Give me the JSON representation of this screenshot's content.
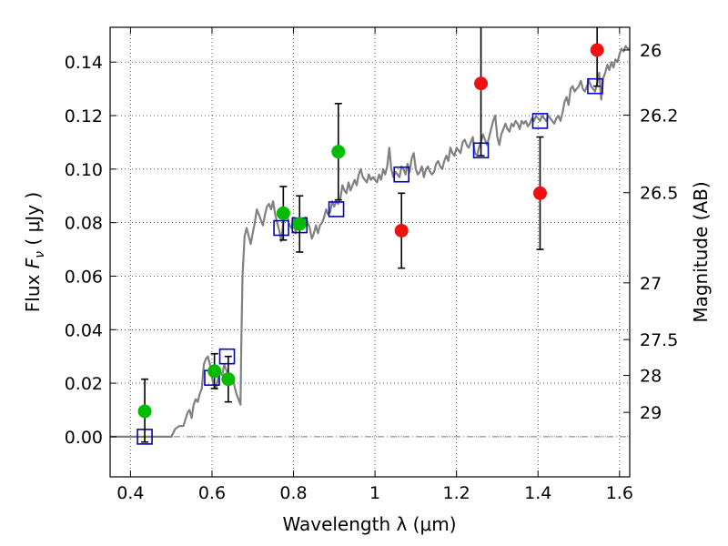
{
  "chart_data": {
    "type": "scatter",
    "title": "",
    "xlabel": "Wavelength  λ (μm)",
    "ylabel": "Flux  F_ν  ( μJy )",
    "ylabel_parts": {
      "prefix": "Flux  ",
      "symbol": "F",
      "subscript": "ν",
      "suffix": "  ( μJy )"
    },
    "y2label": "Magnitude (AB)",
    "xlim": [
      0.35,
      1.625
    ],
    "ylim": [
      -0.015,
      0.153
    ],
    "grid": true,
    "x_ticks": [
      {
        "value": 0.4,
        "label": "0.4"
      },
      {
        "value": 0.6,
        "label": "0.6"
      },
      {
        "value": 0.8,
        "label": "0.8"
      },
      {
        "value": 1.0,
        "label": "1"
      },
      {
        "value": 1.2,
        "label": "1.2"
      },
      {
        "value": 1.4,
        "label": "1.4"
      },
      {
        "value": 1.6,
        "label": "1.6"
      }
    ],
    "y_ticks": [
      {
        "value": 0.0,
        "label": "0.00"
      },
      {
        "value": 0.02,
        "label": "0.02"
      },
      {
        "value": 0.04,
        "label": "0.04"
      },
      {
        "value": 0.06,
        "label": "0.06"
      },
      {
        "value": 0.08,
        "label": "0.08"
      },
      {
        "value": 0.1,
        "label": "0.10"
      },
      {
        "value": 0.12,
        "label": "0.12"
      },
      {
        "value": 0.14,
        "label": "0.14"
      }
    ],
    "y2_ticks": [
      {
        "label": "26",
        "flux": 0.1445
      },
      {
        "label": "26.2",
        "flux": 0.1202
      },
      {
        "label": "26.5",
        "flux": 0.0912
      },
      {
        "label": "27",
        "flux": 0.0575
      },
      {
        "label": "27.5",
        "flux": 0.0363
      },
      {
        "label": "28",
        "flux": 0.0229
      },
      {
        "label": "29",
        "flux": 0.0091
      }
    ],
    "zero_line": 0.0,
    "colors": {
      "spectrum": "#808080",
      "green": "#00bb00",
      "red": "#ee1111",
      "model_box": "#0000cc",
      "errorbar": "#000000"
    },
    "series": [
      {
        "kind": "line",
        "points": [
          [
            0.35,
            0.0
          ],
          [
            0.5,
            0.0
          ],
          [
            0.51,
            0.003
          ],
          [
            0.52,
            0.004
          ],
          [
            0.53,
            0.004
          ],
          [
            0.54,
            0.009
          ],
          [
            0.545,
            0.01
          ],
          [
            0.55,
            0.007
          ],
          [
            0.555,
            0.012
          ],
          [
            0.56,
            0.014
          ],
          [
            0.565,
            0.013
          ],
          [
            0.57,
            0.016
          ],
          [
            0.575,
            0.018
          ],
          [
            0.58,
            0.027
          ],
          [
            0.585,
            0.029
          ],
          [
            0.59,
            0.03
          ],
          [
            0.595,
            0.027
          ],
          [
            0.6,
            0.022
          ],
          [
            0.605,
            0.019
          ],
          [
            0.61,
            0.018
          ],
          [
            0.615,
            0.022
          ],
          [
            0.62,
            0.024
          ],
          [
            0.625,
            0.023
          ],
          [
            0.63,
            0.027
          ],
          [
            0.635,
            0.025
          ],
          [
            0.64,
            0.023
          ],
          [
            0.645,
            0.021
          ],
          [
            0.65,
            0.023
          ],
          [
            0.655,
            0.019
          ],
          [
            0.66,
            0.016
          ],
          [
            0.665,
            0.014
          ],
          [
            0.67,
            0.012
          ],
          [
            0.672,
            0.035
          ],
          [
            0.675,
            0.06
          ],
          [
            0.68,
            0.075
          ],
          [
            0.685,
            0.078
          ],
          [
            0.69,
            0.075
          ],
          [
            0.695,
            0.072
          ],
          [
            0.7,
            0.076
          ],
          [
            0.705,
            0.08
          ],
          [
            0.71,
            0.085
          ],
          [
            0.715,
            0.083
          ],
          [
            0.72,
            0.081
          ],
          [
            0.725,
            0.079
          ],
          [
            0.73,
            0.083
          ],
          [
            0.735,
            0.086
          ],
          [
            0.74,
            0.087
          ],
          [
            0.745,
            0.085
          ],
          [
            0.75,
            0.088
          ],
          [
            0.755,
            0.083
          ],
          [
            0.76,
            0.08
          ],
          [
            0.765,
            0.077
          ],
          [
            0.77,
            0.073
          ],
          [
            0.775,
            0.08
          ],
          [
            0.78,
            0.084
          ],
          [
            0.785,
            0.082
          ],
          [
            0.79,
            0.079
          ],
          [
            0.795,
            0.078
          ],
          [
            0.8,
            0.082
          ],
          [
            0.805,
            0.076
          ],
          [
            0.81,
            0.079
          ],
          [
            0.815,
            0.081
          ],
          [
            0.82,
            0.08
          ],
          [
            0.825,
            0.078
          ],
          [
            0.83,
            0.082
          ],
          [
            0.835,
            0.08
          ],
          [
            0.84,
            0.078
          ],
          [
            0.845,
            0.074
          ],
          [
            0.85,
            0.076
          ],
          [
            0.855,
            0.079
          ],
          [
            0.86,
            0.076
          ],
          [
            0.865,
            0.079
          ],
          [
            0.87,
            0.08
          ],
          [
            0.875,
            0.082
          ],
          [
            0.88,
            0.085
          ],
          [
            0.885,
            0.083
          ],
          [
            0.89,
            0.084
          ],
          [
            0.895,
            0.088
          ],
          [
            0.9,
            0.086
          ],
          [
            0.905,
            0.088
          ],
          [
            0.91,
            0.087
          ],
          [
            0.915,
            0.089
          ],
          [
            0.92,
            0.094
          ],
          [
            0.925,
            0.092
          ],
          [
            0.93,
            0.091
          ],
          [
            0.935,
            0.095
          ],
          [
            0.94,
            0.092
          ],
          [
            0.945,
            0.094
          ],
          [
            0.95,
            0.096
          ],
          [
            0.955,
            0.094
          ],
          [
            0.96,
            0.098
          ],
          [
            0.965,
            0.1
          ],
          [
            0.97,
            0.097
          ],
          [
            0.975,
            0.096
          ],
          [
            0.98,
            0.095
          ],
          [
            0.985,
            0.098
          ],
          [
            0.99,
            0.096
          ],
          [
            0.995,
            0.097
          ],
          [
            1.0,
            0.096
          ],
          [
            1.005,
            0.095
          ],
          [
            1.01,
            0.098
          ],
          [
            1.015,
            0.096
          ],
          [
            1.02,
            0.1
          ],
          [
            1.025,
            0.098
          ],
          [
            1.03,
            0.101
          ],
          [
            1.035,
            0.108
          ],
          [
            1.04,
            0.1
          ],
          [
            1.045,
            0.097
          ],
          [
            1.05,
            0.099
          ],
          [
            1.055,
            0.098
          ],
          [
            1.06,
            0.097
          ],
          [
            1.065,
            0.101
          ],
          [
            1.07,
            0.1
          ],
          [
            1.075,
            0.098
          ],
          [
            1.08,
            0.102
          ],
          [
            1.085,
            0.099
          ],
          [
            1.09,
            0.104
          ],
          [
            1.095,
            0.106
          ],
          [
            1.1,
            0.1
          ],
          [
            1.105,
            0.098
          ],
          [
            1.11,
            0.099
          ],
          [
            1.115,
            0.101
          ],
          [
            1.12,
            0.097
          ],
          [
            1.125,
            0.1
          ],
          [
            1.13,
            0.101
          ],
          [
            1.135,
            0.099
          ],
          [
            1.14,
            0.098
          ],
          [
            1.145,
            0.099
          ],
          [
            1.15,
            0.102
          ],
          [
            1.155,
            0.103
          ],
          [
            1.16,
            0.101
          ],
          [
            1.165,
            0.1
          ],
          [
            1.17,
            0.103
          ],
          [
            1.175,
            0.105
          ],
          [
            1.18,
            0.103
          ],
          [
            1.185,
            0.108
          ],
          [
            1.19,
            0.106
          ],
          [
            1.195,
            0.105
          ],
          [
            1.2,
            0.108
          ],
          [
            1.205,
            0.107
          ],
          [
            1.21,
            0.106
          ],
          [
            1.215,
            0.11
          ],
          [
            1.22,
            0.111
          ],
          [
            1.225,
            0.109
          ],
          [
            1.23,
            0.108
          ],
          [
            1.235,
            0.11
          ],
          [
            1.24,
            0.112
          ],
          [
            1.245,
            0.106
          ],
          [
            1.25,
            0.105
          ],
          [
            1.255,
            0.108
          ],
          [
            1.26,
            0.11
          ],
          [
            1.265,
            0.113
          ],
          [
            1.27,
            0.111
          ],
          [
            1.275,
            0.109
          ],
          [
            1.28,
            0.112
          ],
          [
            1.285,
            0.115
          ],
          [
            1.29,
            0.118
          ],
          [
            1.295,
            0.12
          ],
          [
            1.3,
            0.112
          ],
          [
            1.305,
            0.109
          ],
          [
            1.31,
            0.113
          ],
          [
            1.315,
            0.115
          ],
          [
            1.32,
            0.117
          ],
          [
            1.325,
            0.115
          ],
          [
            1.33,
            0.114
          ],
          [
            1.335,
            0.117
          ],
          [
            1.34,
            0.116
          ],
          [
            1.345,
            0.118
          ],
          [
            1.35,
            0.117
          ],
          [
            1.355,
            0.115
          ],
          [
            1.36,
            0.118
          ],
          [
            1.365,
            0.117
          ],
          [
            1.37,
            0.118
          ],
          [
            1.375,
            0.116
          ],
          [
            1.38,
            0.117
          ],
          [
            1.385,
            0.119
          ],
          [
            1.39,
            0.118
          ],
          [
            1.395,
            0.12
          ],
          [
            1.4,
            0.119
          ],
          [
            1.405,
            0.118
          ],
          [
            1.41,
            0.12
          ],
          [
            1.415,
            0.119
          ],
          [
            1.42,
            0.118
          ],
          [
            1.425,
            0.12
          ],
          [
            1.43,
            0.119
          ],
          [
            1.435,
            0.118
          ],
          [
            1.44,
            0.117
          ],
          [
            1.445,
            0.119
          ],
          [
            1.45,
            0.12
          ],
          [
            1.455,
            0.118
          ],
          [
            1.46,
            0.121
          ],
          [
            1.465,
            0.125
          ],
          [
            1.47,
            0.127
          ],
          [
            1.475,
            0.124
          ],
          [
            1.48,
            0.13
          ],
          [
            1.485,
            0.131
          ],
          [
            1.49,
            0.129
          ],
          [
            1.495,
            0.13
          ],
          [
            1.5,
            0.131
          ],
          [
            1.505,
            0.133
          ],
          [
            1.51,
            0.13
          ],
          [
            1.515,
            0.129
          ],
          [
            1.52,
            0.131
          ],
          [
            1.525,
            0.133
          ],
          [
            1.53,
            0.131
          ],
          [
            1.535,
            0.13
          ],
          [
            1.54,
            0.129
          ],
          [
            1.545,
            0.132
          ],
          [
            1.55,
            0.136
          ],
          [
            1.555,
            0.126
          ],
          [
            1.56,
            0.134
          ],
          [
            1.565,
            0.136
          ],
          [
            1.57,
            0.139
          ],
          [
            1.575,
            0.137
          ],
          [
            1.58,
            0.14
          ],
          [
            1.585,
            0.138
          ],
          [
            1.59,
            0.141
          ],
          [
            1.595,
            0.14
          ],
          [
            1.6,
            0.143
          ],
          [
            1.605,
            0.145
          ],
          [
            1.61,
            0.144
          ],
          [
            1.615,
            0.146
          ],
          [
            1.62,
            0.145
          ],
          [
            1.625,
            0.145
          ]
        ]
      },
      {
        "kind": "model_boxes",
        "points": [
          {
            "x": 0.435,
            "y": 0.0
          },
          {
            "x": 0.6,
            "y": 0.022
          },
          {
            "x": 0.637,
            "y": 0.03
          },
          {
            "x": 0.77,
            "y": 0.078
          },
          {
            "x": 0.815,
            "y": 0.079
          },
          {
            "x": 0.905,
            "y": 0.085
          },
          {
            "x": 1.065,
            "y": 0.098
          },
          {
            "x": 1.26,
            "y": 0.107
          },
          {
            "x": 1.405,
            "y": 0.118
          },
          {
            "x": 1.54,
            "y": 0.131
          }
        ]
      },
      {
        "kind": "observed",
        "points": [
          {
            "x": 0.435,
            "y": 0.0095,
            "err_lo": 0.0115,
            "err_hi": 0.012,
            "color": "green"
          },
          {
            "x": 0.606,
            "y": 0.0245,
            "err_lo": 0.0065,
            "err_hi": 0.0065,
            "color": "green"
          },
          {
            "x": 0.64,
            "y": 0.0215,
            "err_lo": 0.0085,
            "err_hi": 0.0085,
            "color": "green"
          },
          {
            "x": 0.775,
            "y": 0.0835,
            "err_lo": 0.01,
            "err_hi": 0.01,
            "color": "green"
          },
          {
            "x": 0.815,
            "y": 0.0795,
            "err_lo": 0.0105,
            "err_hi": 0.0105,
            "color": "green"
          },
          {
            "x": 0.91,
            "y": 0.1065,
            "err_lo": 0.018,
            "err_hi": 0.018,
            "color": "green"
          },
          {
            "x": 1.065,
            "y": 0.077,
            "err_lo": 0.014,
            "err_hi": 0.014,
            "color": "red"
          },
          {
            "x": 1.26,
            "y": 0.132,
            "err_lo": 0.027,
            "err_hi": 0.027,
            "color": "red"
          },
          {
            "x": 1.405,
            "y": 0.091,
            "err_lo": 0.021,
            "err_hi": 0.021,
            "color": "red"
          },
          {
            "x": 1.545,
            "y": 0.1445,
            "err_lo": 0.0135,
            "err_hi": 0.0135,
            "color": "red"
          }
        ]
      }
    ]
  }
}
